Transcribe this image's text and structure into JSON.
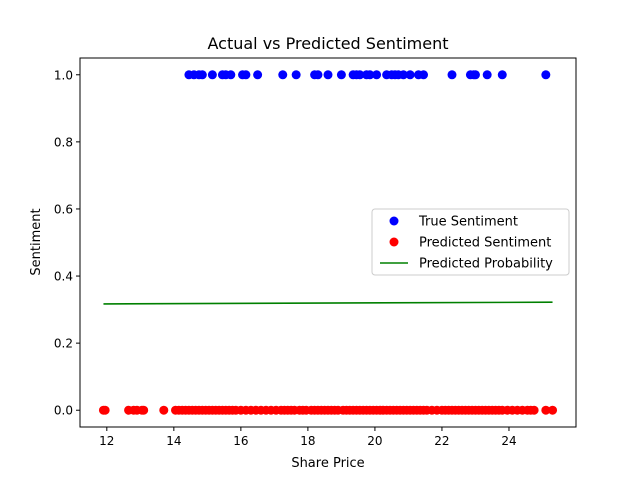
{
  "chart_data": {
    "type": "scatter",
    "title": "Actual vs Predicted Sentiment",
    "xlabel": "Share Price",
    "ylabel": "Sentiment",
    "xlim": [
      11.2,
      26.0
    ],
    "ylim": [
      -0.05,
      1.05
    ],
    "xticks": [
      12,
      14,
      16,
      18,
      20,
      22,
      24
    ],
    "xtick_labels": [
      "12",
      "14",
      "16",
      "18",
      "20",
      "22",
      "24"
    ],
    "yticks": [
      0.0,
      0.2,
      0.4,
      0.6,
      0.8,
      1.0
    ],
    "ytick_labels": [
      "0.0",
      "0.2",
      "0.4",
      "0.6",
      "0.8",
      "1.0"
    ],
    "grid": false,
    "legend_position": "center-right",
    "series": [
      {
        "name": "True Sentiment",
        "kind": "scatter",
        "color": "#0000ff",
        "x": [
          14.45,
          14.6,
          14.75,
          14.85,
          15.15,
          15.45,
          15.55,
          15.7,
          16.05,
          16.15,
          16.5,
          17.25,
          17.65,
          18.2,
          18.3,
          18.6,
          19.0,
          19.35,
          19.45,
          19.55,
          19.75,
          19.85,
          20.05,
          20.35,
          20.5,
          20.6,
          20.7,
          20.85,
          21.05,
          21.3,
          21.45,
          22.3,
          22.85,
          22.95,
          23.0,
          23.35,
          23.8,
          25.1
        ],
        "y": [
          1,
          1,
          1,
          1,
          1,
          1,
          1,
          1,
          1,
          1,
          1,
          1,
          1,
          1,
          1,
          1,
          1,
          1,
          1,
          1,
          1,
          1,
          1,
          1,
          1,
          1,
          1,
          1,
          1,
          1,
          1,
          1,
          1,
          1,
          1,
          1,
          1,
          1
        ]
      },
      {
        "name": "Predicted Sentiment",
        "kind": "scatter",
        "color": "#ff0000",
        "x": [
          11.9,
          11.95,
          12.65,
          12.8,
          12.9,
          13.05,
          13.1,
          13.7,
          14.05,
          14.15,
          14.25,
          14.35,
          14.45,
          14.55,
          14.65,
          14.75,
          14.85,
          14.95,
          15.05,
          15.15,
          15.25,
          15.35,
          15.45,
          15.55,
          15.65,
          15.75,
          15.85,
          16.0,
          16.15,
          16.3,
          16.45,
          16.6,
          16.75,
          16.9,
          17.05,
          17.2,
          17.3,
          17.4,
          17.5,
          17.6,
          17.75,
          17.85,
          17.95,
          18.1,
          18.2,
          18.3,
          18.4,
          18.5,
          18.6,
          18.7,
          18.8,
          18.9,
          19.05,
          19.15,
          19.25,
          19.35,
          19.45,
          19.55,
          19.65,
          19.75,
          19.85,
          19.95,
          20.05,
          20.15,
          20.25,
          20.35,
          20.45,
          20.55,
          20.65,
          20.75,
          20.85,
          20.95,
          21.05,
          21.15,
          21.25,
          21.35,
          21.45,
          21.55,
          21.7,
          21.85,
          22.0,
          22.1,
          22.2,
          22.3,
          22.4,
          22.5,
          22.6,
          22.7,
          22.8,
          22.9,
          23.0,
          23.1,
          23.2,
          23.3,
          23.4,
          23.5,
          23.6,
          23.7,
          23.8,
          23.95,
          24.1,
          24.25,
          24.4,
          24.55,
          24.65,
          24.75,
          25.1,
          25.3
        ],
        "y": [
          0,
          0,
          0,
          0,
          0,
          0,
          0,
          0,
          0,
          0,
          0,
          0,
          0,
          0,
          0,
          0,
          0,
          0,
          0,
          0,
          0,
          0,
          0,
          0,
          0,
          0,
          0,
          0,
          0,
          0,
          0,
          0,
          0,
          0,
          0,
          0,
          0,
          0,
          0,
          0,
          0,
          0,
          0,
          0,
          0,
          0,
          0,
          0,
          0,
          0,
          0,
          0,
          0,
          0,
          0,
          0,
          0,
          0,
          0,
          0,
          0,
          0,
          0,
          0,
          0,
          0,
          0,
          0,
          0,
          0,
          0,
          0,
          0,
          0,
          0,
          0,
          0,
          0,
          0,
          0,
          0,
          0,
          0,
          0,
          0,
          0,
          0,
          0,
          0,
          0,
          0,
          0,
          0,
          0,
          0,
          0,
          0,
          0,
          0,
          0,
          0,
          0,
          0,
          0,
          0,
          0,
          0,
          0
        ]
      },
      {
        "name": "Predicted Probability",
        "kind": "line",
        "color": "#008000",
        "x": [
          11.9,
          25.3
        ],
        "y": [
          0.317,
          0.322
        ]
      }
    ]
  }
}
